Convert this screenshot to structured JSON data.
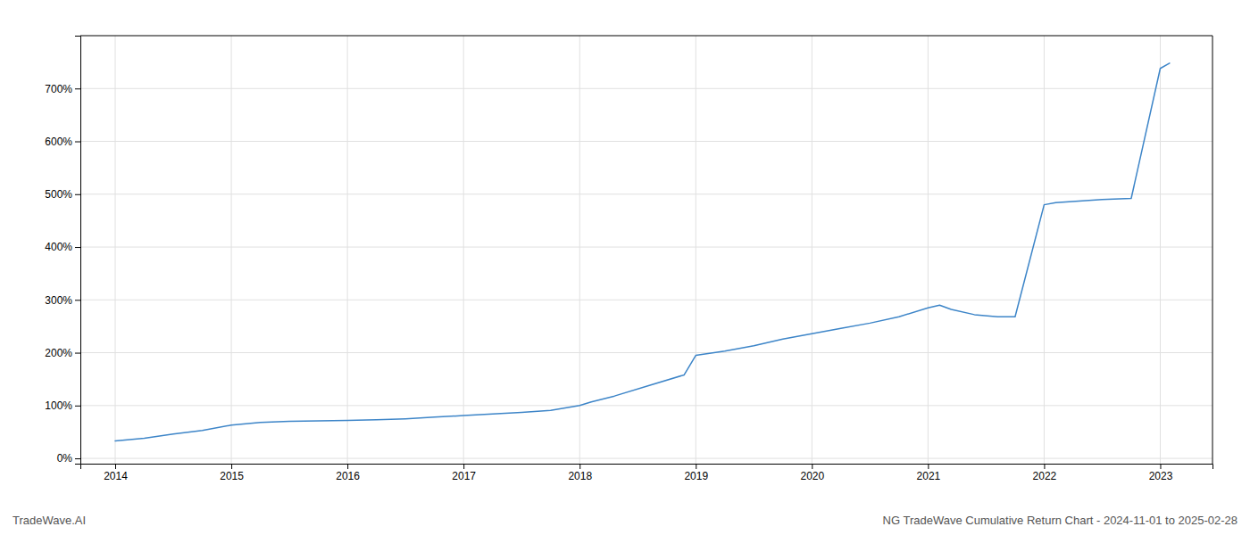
{
  "chart_data": {
    "type": "line",
    "title": "NG TradeWave Cumulative Return Chart - 2024-11-01 to 2025-02-28",
    "annotations": [
      "TradeWave.AI"
    ],
    "color": "#3d85c8",
    "x": [
      2014.0,
      2014.25,
      2014.5,
      2014.75,
      2015.0,
      2015.25,
      2015.5,
      2015.75,
      2016.0,
      2016.25,
      2016.5,
      2016.75,
      2017.0,
      2017.25,
      2017.5,
      2017.75,
      2018.0,
      2018.1,
      2018.3,
      2018.6,
      2018.9,
      2019.0,
      2019.25,
      2019.5,
      2019.75,
      2020.0,
      2020.25,
      2020.5,
      2020.75,
      2021.0,
      2021.1,
      2021.2,
      2021.4,
      2021.6,
      2021.75,
      2022.0,
      2022.1,
      2022.5,
      2022.75,
      2023.0,
      2023.08
    ],
    "values": [
      33,
      38,
      46,
      53,
      63,
      68,
      70,
      71,
      72,
      73,
      75,
      78,
      81,
      84,
      87,
      91,
      100,
      107,
      118,
      138,
      158,
      195,
      203,
      213,
      226,
      236,
      246,
      256,
      268,
      285,
      290,
      282,
      272,
      268,
      268,
      480,
      484,
      490,
      492,
      738,
      748
    ],
    "xlim": [
      2013.7,
      2023.45
    ],
    "ylim": [
      -10,
      800
    ],
    "xticks": [
      2014,
      2015,
      2016,
      2017,
      2018,
      2019,
      2020,
      2021,
      2022,
      2023
    ],
    "yticks": [
      {
        "value": 0,
        "label": "0%"
      },
      {
        "value": 100,
        "label": "100%"
      },
      {
        "value": 200,
        "label": "200%"
      },
      {
        "value": 300,
        "label": "300%"
      },
      {
        "value": 400,
        "label": "400%"
      },
      {
        "value": 500,
        "label": "500%"
      },
      {
        "value": 600,
        "label": "600%"
      },
      {
        "value": 700,
        "label": "700%"
      }
    ],
    "grid": true
  }
}
